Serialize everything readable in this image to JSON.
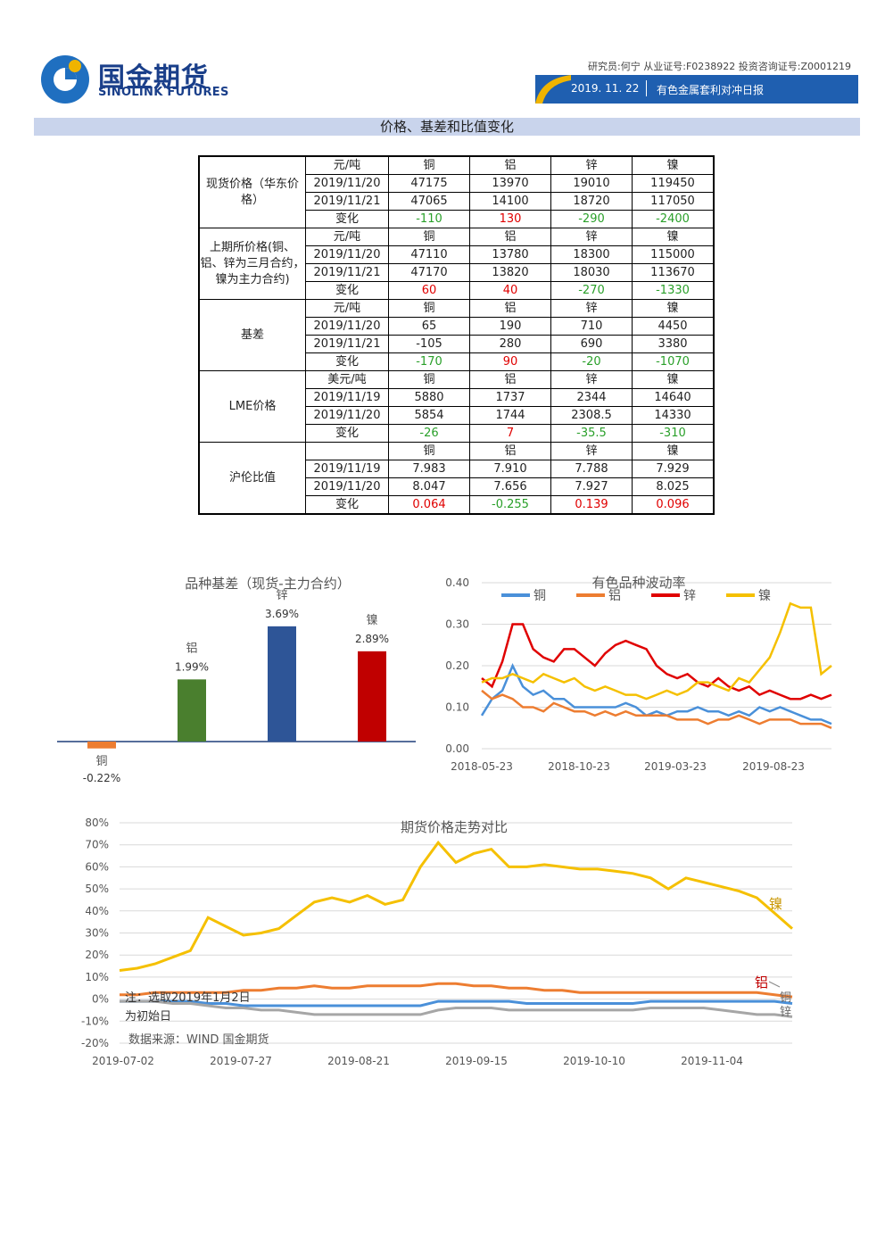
{
  "header": {
    "brand_cn": "国金期货",
    "brand_en": "SINOLINK FUTURES",
    "analyst": "研究员:何宁 从业证号:F0238922 投资咨询证号:Z0001219",
    "date": "2019. 11. 22",
    "report_title": "有色金属套利对冲日报"
  },
  "section": {
    "title": "价格、基差和比值变化"
  },
  "colors": {
    "copper": "#4a90d9",
    "aluminum": "#ed7d31",
    "zinc": "#e00000",
    "nickel": "#f5c000",
    "bar_copper": "#ed7d31",
    "bar_aluminum": "#4a7f2e",
    "bar_zinc": "#2e5597",
    "bar_nickel": "#c00000"
  },
  "table": {
    "groups": [
      {
        "name": "现货价格（华东价格）",
        "unit": "元/吨",
        "cols": [
          "铜",
          "铝",
          "锌",
          "镍"
        ],
        "rows": [
          {
            "label": "2019/11/20",
            "values": [
              "47175",
              "13970",
              "19010",
              "119450"
            ]
          },
          {
            "label": "2019/11/21",
            "values": [
              "47065",
              "14100",
              "18720",
              "117050"
            ]
          },
          {
            "label": "变化",
            "values": [
              "-110",
              "130",
              "-290",
              "-2400"
            ],
            "change": true
          }
        ]
      },
      {
        "name": "上期所价格(铜、铝、锌为三月合约，镍为主力合约)",
        "unit": "元/吨",
        "cols": [
          "铜",
          "铝",
          "锌",
          "镍"
        ],
        "rows": [
          {
            "label": "2019/11/20",
            "values": [
              "47110",
              "13780",
              "18300",
              "115000"
            ]
          },
          {
            "label": "2019/11/21",
            "values": [
              "47170",
              "13820",
              "18030",
              "113670"
            ]
          },
          {
            "label": "变化",
            "values": [
              "60",
              "40",
              "-270",
              "-1330"
            ],
            "change": true
          }
        ]
      },
      {
        "name": "基差",
        "unit": "元/吨",
        "cols": [
          "铜",
          "铝",
          "锌",
          "镍"
        ],
        "rows": [
          {
            "label": "2019/11/20",
            "values": [
              "65",
              "190",
              "710",
              "4450"
            ]
          },
          {
            "label": "2019/11/21",
            "values": [
              "-105",
              "280",
              "690",
              "3380"
            ]
          },
          {
            "label": "变化",
            "values": [
              "-170",
              "90",
              "-20",
              "-1070"
            ],
            "change": true
          }
        ]
      },
      {
        "name": "LME价格",
        "unit": "美元/吨",
        "cols": [
          "铜",
          "铝",
          "锌",
          "镍"
        ],
        "rows": [
          {
            "label": "2019/11/19",
            "values": [
              "5880",
              "1737",
              "2344",
              "14640"
            ]
          },
          {
            "label": "2019/11/20",
            "values": [
              "5854",
              "1744",
              "2308.5",
              "14330"
            ]
          },
          {
            "label": "变化",
            "values": [
              "-26",
              "7",
              "-35.5",
              "-310"
            ],
            "change": true
          }
        ]
      },
      {
        "name": "沪伦比值",
        "unit": "",
        "cols": [
          "铜",
          "铝",
          "锌",
          "镍"
        ],
        "rows": [
          {
            "label": "2019/11/19",
            "values": [
              "7.983",
              "7.910",
              "7.788",
              "7.929"
            ]
          },
          {
            "label": "2019/11/20",
            "values": [
              "8.047",
              "7.656",
              "7.927",
              "8.025"
            ]
          },
          {
            "label": "变化",
            "values": [
              "0.064",
              "-0.255",
              "0.139",
              "0.096"
            ],
            "change": true
          }
        ]
      }
    ]
  },
  "chart_data": [
    {
      "type": "bar",
      "title": "品种基差（现货-主力合约）",
      "categories": [
        "铜",
        "铝",
        "锌",
        "镍"
      ],
      "values": [
        -0.22,
        1.99,
        3.69,
        2.89
      ],
      "value_labels": [
        "-0.22%",
        "1.99%",
        "3.69%",
        "2.89%"
      ]
    },
    {
      "type": "line",
      "title": "有色品种波动率",
      "x_ticks": [
        "2018-05-23",
        "2018-10-23",
        "2019-03-23",
        "2019-08-23"
      ],
      "y_ticks": [
        "0.00",
        "0.10",
        "0.20",
        "0.30",
        "0.40"
      ],
      "ylim": [
        0,
        0.4
      ],
      "legend": "top",
      "series": [
        {
          "name": "铜",
          "values": [
            0.08,
            0.12,
            0.14,
            0.2,
            0.15,
            0.13,
            0.14,
            0.12,
            0.12,
            0.1,
            0.1,
            0.1,
            0.1,
            0.1,
            0.11,
            0.1,
            0.08,
            0.09,
            0.08,
            0.09,
            0.09,
            0.1,
            0.09,
            0.09,
            0.08,
            0.09,
            0.08,
            0.1,
            0.09,
            0.1,
            0.09,
            0.08,
            0.07,
            0.07,
            0.06
          ]
        },
        {
          "name": "铝",
          "values": [
            0.14,
            0.12,
            0.13,
            0.12,
            0.1,
            0.1,
            0.09,
            0.11,
            0.1,
            0.09,
            0.09,
            0.08,
            0.09,
            0.08,
            0.09,
            0.08,
            0.08,
            0.08,
            0.08,
            0.07,
            0.07,
            0.07,
            0.06,
            0.07,
            0.07,
            0.08,
            0.07,
            0.06,
            0.07,
            0.07,
            0.07,
            0.06,
            0.06,
            0.06,
            0.05
          ]
        },
        {
          "name": "锌",
          "values": [
            0.17,
            0.15,
            0.21,
            0.3,
            0.3,
            0.24,
            0.22,
            0.21,
            0.24,
            0.24,
            0.22,
            0.2,
            0.23,
            0.25,
            0.26,
            0.25,
            0.24,
            0.2,
            0.18,
            0.17,
            0.18,
            0.16,
            0.15,
            0.17,
            0.15,
            0.14,
            0.15,
            0.13,
            0.14,
            0.13,
            0.12,
            0.12,
            0.13,
            0.12,
            0.13
          ]
        },
        {
          "name": "镍",
          "values": [
            0.16,
            0.17,
            0.17,
            0.18,
            0.17,
            0.16,
            0.18,
            0.17,
            0.16,
            0.17,
            0.15,
            0.14,
            0.15,
            0.14,
            0.13,
            0.13,
            0.12,
            0.13,
            0.14,
            0.13,
            0.14,
            0.16,
            0.16,
            0.15,
            0.14,
            0.17,
            0.16,
            0.19,
            0.22,
            0.28,
            0.35,
            0.34,
            0.34,
            0.18,
            0.2
          ]
        }
      ]
    },
    {
      "type": "line",
      "title": "期货价格走势对比",
      "x_ticks": [
        "2019-07-02",
        "2019-07-27",
        "2019-08-21",
        "2019-09-15",
        "2019-10-10",
        "2019-11-04"
      ],
      "y_ticks": [
        "80%",
        "70%",
        "60%",
        "50%",
        "40%",
        "30%",
        "20%",
        "10%",
        "0%",
        "-10%",
        "-20%"
      ],
      "ylim": [
        -20,
        80
      ],
      "series": [
        {
          "name": "镍",
          "values": [
            13,
            14,
            16,
            19,
            22,
            37,
            33,
            29,
            30,
            32,
            38,
            44,
            46,
            44,
            47,
            43,
            45,
            60,
            71,
            62,
            66,
            68,
            60,
            60,
            61,
            60,
            59,
            59,
            58,
            57,
            55,
            50,
            55,
            53,
            51,
            49,
            46,
            39,
            32
          ]
        },
        {
          "name": "铝",
          "values": [
            2,
            2,
            3,
            3,
            3,
            3,
            3,
            4,
            4,
            5,
            5,
            6,
            5,
            5,
            6,
            6,
            6,
            6,
            7,
            7,
            6,
            6,
            5,
            5,
            4,
            4,
            3,
            3,
            3,
            3,
            3,
            3,
            3,
            3,
            3,
            3,
            3,
            2,
            1
          ]
        },
        {
          "name": "铜",
          "values": [
            -1,
            -1,
            -1,
            -1,
            -1,
            -2,
            -2,
            -3,
            -3,
            -3,
            -3,
            -3,
            -3,
            -3,
            -3,
            -3,
            -3,
            -3,
            -1,
            -1,
            -1,
            -1,
            -1,
            -2,
            -2,
            -2,
            -2,
            -2,
            -2,
            -2,
            -1,
            -1,
            -1,
            -1,
            -1,
            -1,
            -1,
            -1,
            -2
          ]
        },
        {
          "name": "锌",
          "values": [
            -1,
            -1,
            -1,
            -2,
            -2,
            -3,
            -4,
            -4,
            -5,
            -5,
            -6,
            -7,
            -7,
            -7,
            -7,
            -7,
            -7,
            -7,
            -5,
            -4,
            -4,
            -4,
            -5,
            -5,
            -5,
            -5,
            -5,
            -5,
            -5,
            -5,
            -4,
            -4,
            -4,
            -4,
            -5,
            -6,
            -7,
            -7,
            -8
          ]
        }
      ],
      "labels": {
        "nickel": "镍",
        "aluminum": "铝",
        "copper": "铜",
        "zinc": "锌"
      },
      "note": "注：选取2019年1月2日为初始日",
      "source": "数据来源：WIND 国金期货"
    }
  ]
}
